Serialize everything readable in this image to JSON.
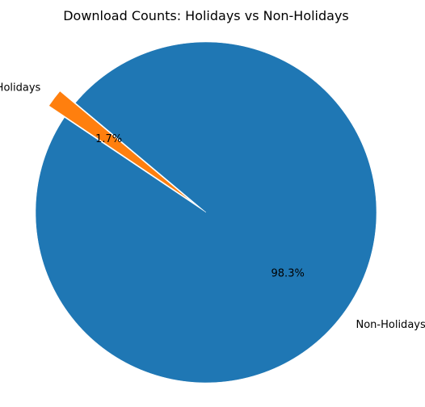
{
  "chart_data": {
    "type": "pie",
    "title": "Download Counts: Holidays vs Non-Holidays",
    "labels": [
      "Holidays",
      "Non-Holidays"
    ],
    "values": [
      1.7,
      98.3
    ],
    "percent_labels": [
      "1.7%",
      "98.3%"
    ],
    "colors": [
      "#ff7f0e",
      "#1f77b4"
    ],
    "exploded": [
      true,
      false
    ],
    "start_angle_deg": 140,
    "legend": "none"
  }
}
